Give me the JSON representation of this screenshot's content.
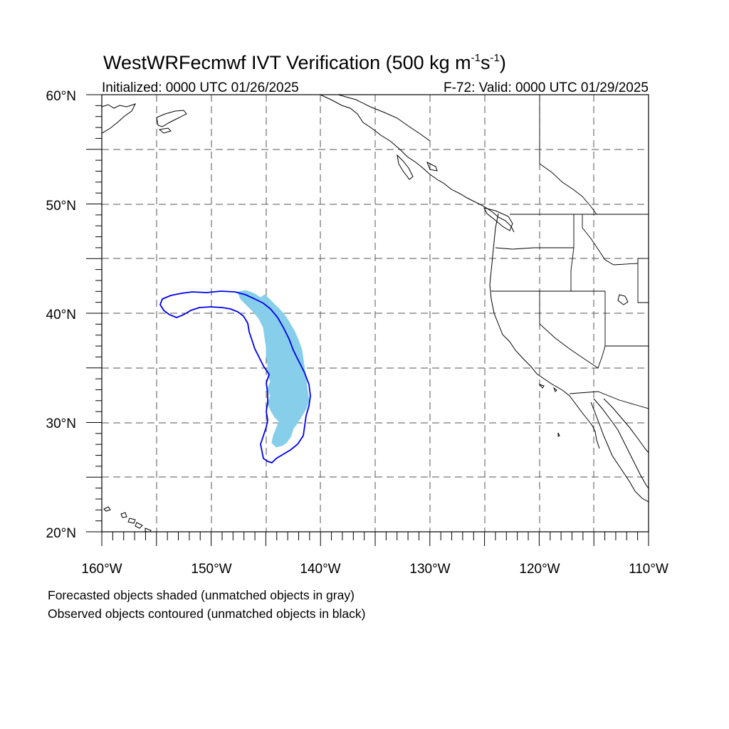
{
  "title": {
    "prefix": "WestWRFecmwf IVT Verification (500 kg m",
    "sup1": "-1",
    "mid": "s",
    "sup2": "-1",
    "suffix": ")"
  },
  "subtitle_left": "Initialized: 0000 UTC 01/26/2025",
  "subtitle_right": "F-72: Valid: 0000 UTC 01/29/2025",
  "map": {
    "projection": "cylindrical-equidistant",
    "lon_range": [
      -160,
      -110
    ],
    "lat_range": [
      20,
      60
    ],
    "grid": "dashed every 5 degrees",
    "lat_labels": [
      {
        "lat": 60,
        "text": "60°N"
      },
      {
        "lat": 50,
        "text": "50°N"
      },
      {
        "lat": 40,
        "text": "40°N"
      },
      {
        "lat": 30,
        "text": "30°N"
      },
      {
        "lat": 20,
        "text": "20°N"
      }
    ],
    "lon_labels": [
      {
        "lon": -160,
        "text": "160°W"
      },
      {
        "lon": -150,
        "text": "150°W"
      },
      {
        "lon": -140,
        "text": "140°W"
      },
      {
        "lon": -130,
        "text": "130°W"
      },
      {
        "lon": -120,
        "text": "120°W"
      },
      {
        "lon": -110,
        "text": "110°W"
      }
    ],
    "colors": {
      "forecast_fill": "#87ceeb",
      "observed_contour": "#0000ee",
      "coastline": "#000000",
      "grid": "#555555"
    }
  },
  "notes": [
    "Forecasted objects shaded (unmatched objects in gray)",
    "Observed objects contoured (unmatched objects in black)"
  ]
}
